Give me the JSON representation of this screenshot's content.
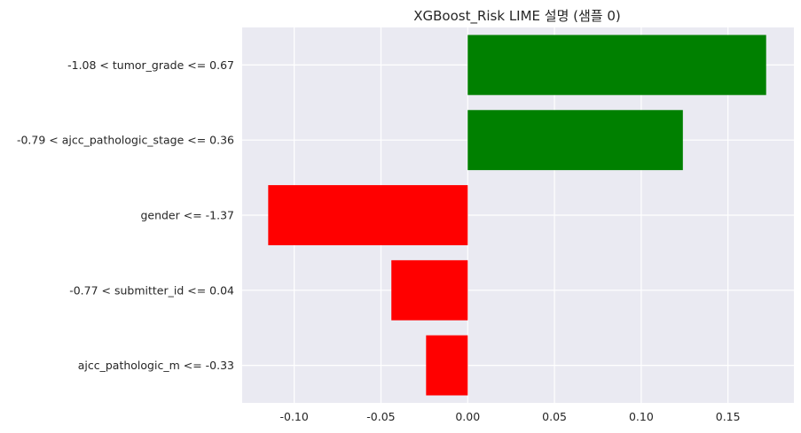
{
  "chart_data": {
    "type": "bar",
    "orientation": "horizontal",
    "title": "XGBoost_Risk LIME 설명 (샘플 0)",
    "xlabel": "",
    "ylabel": "",
    "categories": [
      "-1.08 < tumor_grade <= 0.67",
      "-0.79 < ajcc_pathologic_stage <= 0.36",
      "gender <= -1.37",
      "-0.77 < submitter_id <= 0.04",
      "ajcc_pathologic_m <= -0.33"
    ],
    "values": [
      0.172,
      0.124,
      -0.115,
      -0.044,
      -0.024
    ],
    "xlim": [
      -0.13,
      0.188
    ],
    "xticks": [
      -0.1,
      -0.05,
      0.0,
      0.05,
      0.1,
      0.15
    ],
    "xtick_labels": [
      "-0.10",
      "-0.05",
      "0.00",
      "0.05",
      "0.10",
      "0.15"
    ],
    "grid": true,
    "colors": {
      "positive": "#008000",
      "negative": "#ff0000",
      "background": "#eaeaf2",
      "grid": "#ffffff",
      "text": "#262626"
    }
  }
}
